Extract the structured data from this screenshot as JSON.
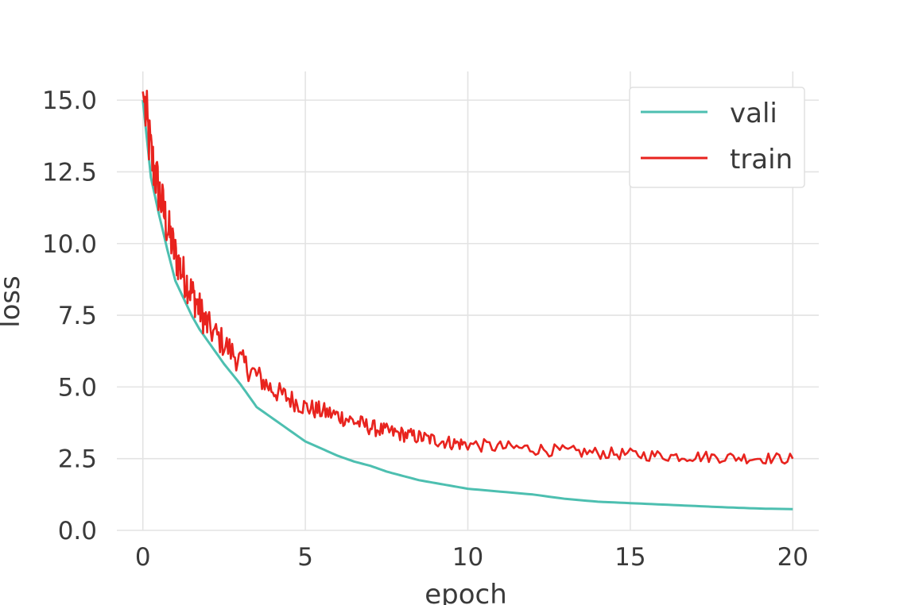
{
  "chart_data": {
    "type": "line",
    "title": "",
    "xlabel": "epoch",
    "ylabel": "loss",
    "xlim": [
      -0.8,
      20.8
    ],
    "ylim": [
      0,
      16
    ],
    "xticks": [
      0,
      5,
      10,
      15,
      20
    ],
    "xtick_labels": [
      "0",
      "5",
      "10",
      "15",
      "20"
    ],
    "yticks": [
      0,
      2.5,
      5,
      7.5,
      10,
      12.5,
      15
    ],
    "ytick_labels": [
      "0.0",
      "2.5",
      "5.0",
      "7.5",
      "10.0",
      "12.5",
      "15.0"
    ],
    "grid": true,
    "legend_position": "top-right",
    "series": [
      {
        "name": "vali",
        "color": "#4dbfb0",
        "x": [
          0,
          0.25,
          0.5,
          0.75,
          1,
          1.25,
          1.5,
          1.75,
          2,
          2.5,
          3,
          3.5,
          4,
          4.5,
          5,
          5.5,
          6,
          6.5,
          7,
          7.5,
          8,
          8.5,
          9,
          9.5,
          10,
          11,
          12,
          13,
          14,
          15,
          16,
          17,
          18,
          19,
          20
        ],
        "values": [
          15.0,
          12.3,
          11.0,
          9.8,
          8.7,
          8.1,
          7.5,
          7.0,
          6.6,
          5.8,
          5.1,
          4.3,
          3.9,
          3.5,
          3.1,
          2.85,
          2.6,
          2.4,
          2.25,
          2.05,
          1.9,
          1.75,
          1.65,
          1.55,
          1.45,
          1.35,
          1.25,
          1.1,
          1.0,
          0.95,
          0.9,
          0.85,
          0.8,
          0.76,
          0.74
        ]
      },
      {
        "name": "train",
        "color": "#e8231e",
        "x": [
          0,
          0.25,
          0.5,
          0.75,
          1,
          1.25,
          1.5,
          1.75,
          2,
          2.5,
          3,
          3.5,
          4,
          4.5,
          5,
          5.5,
          6,
          6.5,
          7,
          7.5,
          8,
          8.5,
          9,
          9.5,
          10,
          11,
          12,
          13,
          14,
          15,
          16,
          17,
          18,
          19,
          20
        ],
        "values": [
          15.3,
          13.1,
          11.8,
          10.6,
          9.6,
          8.9,
          8.3,
          7.7,
          7.1,
          6.5,
          5.9,
          5.4,
          4.9,
          4.6,
          4.3,
          4.15,
          4.0,
          3.8,
          3.6,
          3.45,
          3.35,
          3.25,
          3.15,
          3.05,
          3.0,
          2.9,
          2.85,
          2.75,
          2.7,
          2.65,
          2.6,
          2.58,
          2.55,
          2.52,
          2.5
        ]
      }
    ]
  }
}
